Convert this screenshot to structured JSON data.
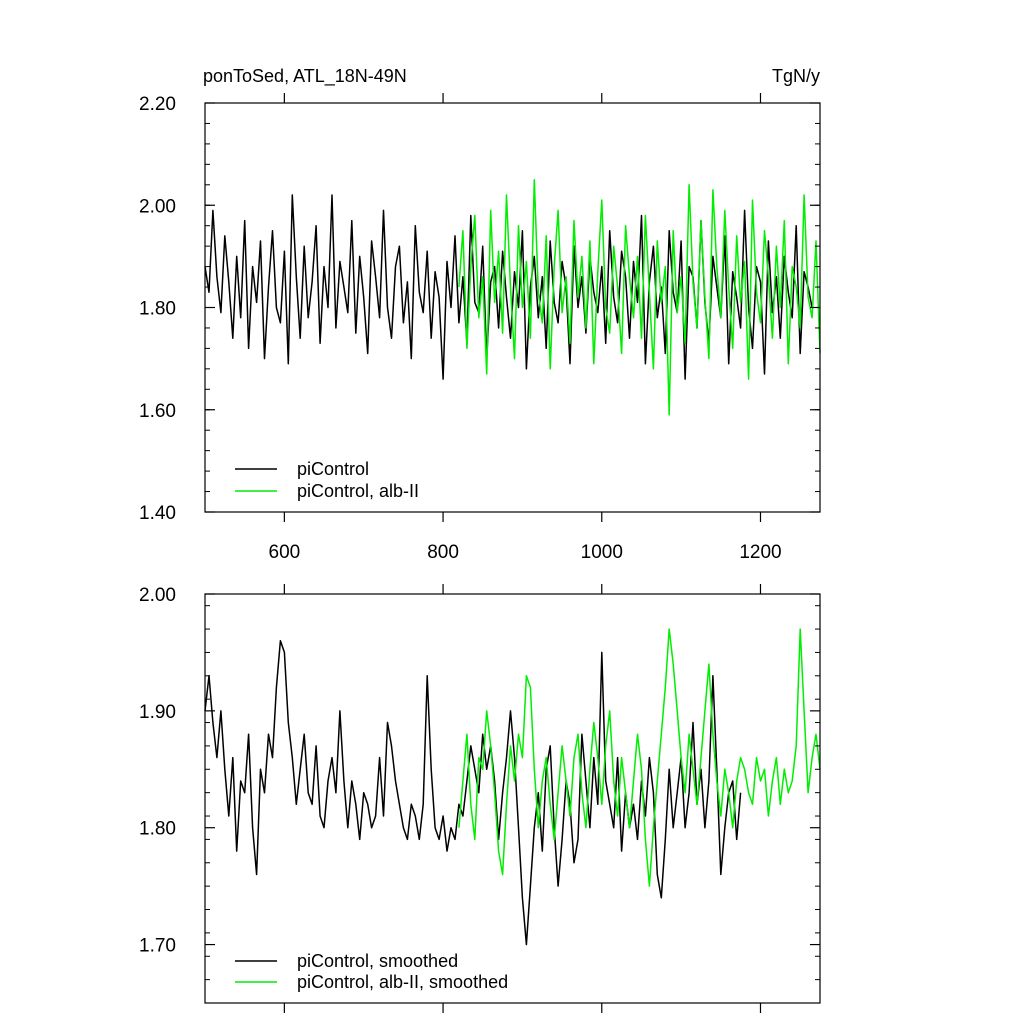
{
  "colors": {
    "piControl": "#000000",
    "albII": "#00ee00",
    "axis": "#000000",
    "background": "#ffffff"
  },
  "chart_data": [
    {
      "type": "line",
      "panel": "top",
      "title_left": "ponToSed, ATL_18N-49N",
      "title_right": "TgN/y",
      "xlim": [
        500,
        1275
      ],
      "ylim": [
        1.4,
        2.2
      ],
      "x_ticks": [
        600,
        800,
        1000,
        1200
      ],
      "x_tick_labels": [
        "600",
        "800",
        "1000",
        "1200"
      ],
      "y_ticks": [
        1.4,
        1.6,
        1.8,
        2.0,
        2.2
      ],
      "y_tick_labels": [
        "1.40",
        "1.60",
        "1.80",
        "2.00",
        "2.20"
      ],
      "grid": false,
      "legend_position": "bottom-left",
      "series": [
        {
          "name": "piControl",
          "color": "#000000",
          "x_start": 500,
          "x_step": 5,
          "values": [
            1.88,
            1.83,
            1.99,
            1.86,
            1.79,
            1.94,
            1.85,
            1.74,
            1.9,
            1.78,
            1.97,
            1.72,
            1.88,
            1.81,
            1.93,
            1.7,
            1.84,
            1.95,
            1.8,
            1.77,
            1.91,
            1.69,
            2.02,
            1.86,
            1.74,
            1.92,
            1.78,
            1.85,
            1.96,
            1.73,
            1.88,
            1.8,
            2.02,
            1.76,
            1.89,
            1.84,
            1.79,
            1.97,
            1.75,
            1.9,
            1.82,
            1.71,
            1.93,
            1.86,
            1.78,
            1.99,
            1.8,
            1.74,
            1.88,
            1.92,
            1.77,
            1.85,
            1.7,
            1.96,
            1.83,
            1.79,
            1.91,
            1.74,
            1.87,
            1.82,
            1.66,
            1.89,
            1.8,
            1.94,
            1.77,
            1.86,
            1.73,
            1.98,
            1.81,
            1.79,
            1.92,
            1.7,
            1.85,
            1.88,
            1.76,
            1.91,
            1.82,
            1.74,
            1.87,
            1.8,
            1.95,
            1.68,
            1.84,
            1.9,
            1.78,
            1.86,
            1.72,
            1.93,
            1.81,
            1.77,
            1.89,
            1.84,
            1.69,
            1.92,
            1.8,
            1.86,
            1.75,
            1.9,
            1.83,
            1.79,
            1.88,
            1.73,
            1.95,
            1.82,
            1.77,
            1.91,
            1.86,
            1.74,
            1.89,
            1.81,
            1.98,
            1.69,
            1.85,
            1.92,
            1.78,
            1.84,
            1.71,
            1.95,
            1.83,
            1.79,
            1.93,
            1.66,
            1.88,
            1.86,
            1.76,
            1.97,
            1.81,
            1.73,
            1.9,
            1.84,
            1.78,
            1.94,
            1.69,
            1.87,
            1.82,
            1.76,
            1.99,
            1.8,
            1.72,
            1.88,
            1.85,
            1.67,
            1.93,
            1.79,
            1.86,
            1.74,
            1.9,
            1.83,
            1.78,
            1.96,
            1.71,
            1.87,
            1.84,
            1.8
          ]
        },
        {
          "name": "piControl, alb-II",
          "color": "#00ee00",
          "x_start": 820,
          "x_step": 5,
          "values": [
            1.84,
            1.95,
            1.72,
            1.88,
            1.98,
            1.78,
            1.86,
            1.67,
            1.99,
            1.81,
            1.91,
            1.75,
            2.02,
            1.84,
            1.7,
            1.96,
            1.8,
            1.89,
            1.74,
            2.05,
            1.83,
            1.77,
            1.94,
            1.68,
            1.88,
            1.99,
            1.79,
            1.86,
            1.73,
            1.97,
            1.82,
            1.9,
            1.76,
            1.93,
            1.69,
            1.87,
            2.01,
            1.8,
            1.75,
            1.92,
            1.84,
            1.71,
            1.96,
            1.86,
            1.78,
            1.9,
            1.74,
            1.98,
            1.83,
            1.68,
            1.93,
            1.81,
            1.88,
            1.59,
            1.95,
            1.79,
            1.86,
            1.73,
            2.04,
            1.85,
            1.76,
            1.97,
            1.82,
            1.7,
            2.03,
            1.88,
            1.78,
            1.99,
            1.84,
            1.72,
            1.94,
            1.81,
            1.89,
            1.66,
            2.01,
            1.83,
            1.77,
            1.95,
            1.86,
            1.74,
            1.92,
            1.8,
            1.97,
            1.69,
            1.88,
            1.84,
            1.76,
            2.02,
            1.82,
            1.78,
            1.93,
            1.71
          ]
        }
      ]
    },
    {
      "type": "line",
      "panel": "bottom",
      "xlim": [
        500,
        1275
      ],
      "ylim": [
        1.65,
        2.0
      ],
      "x_ticks": [
        600,
        800,
        1000,
        1200
      ],
      "y_ticks": [
        1.7,
        1.8,
        1.9,
        2.0
      ],
      "y_tick_labels": [
        "1.70",
        "1.80",
        "1.90",
        "2.00"
      ],
      "grid": false,
      "legend_position": "bottom-left",
      "series": [
        {
          "name": "piControl, smoothed",
          "color": "#000000",
          "x_start": 500,
          "x_step": 5,
          "values": [
            1.9,
            1.93,
            1.89,
            1.86,
            1.9,
            1.85,
            1.81,
            1.86,
            1.78,
            1.84,
            1.83,
            1.88,
            1.8,
            1.76,
            1.85,
            1.83,
            1.88,
            1.86,
            1.92,
            1.96,
            1.95,
            1.89,
            1.86,
            1.82,
            1.85,
            1.88,
            1.83,
            1.82,
            1.87,
            1.81,
            1.8,
            1.84,
            1.86,
            1.83,
            1.9,
            1.84,
            1.8,
            1.84,
            1.82,
            1.79,
            1.83,
            1.82,
            1.8,
            1.81,
            1.86,
            1.81,
            1.89,
            1.87,
            1.84,
            1.82,
            1.8,
            1.79,
            1.82,
            1.81,
            1.79,
            1.82,
            1.93,
            1.85,
            1.8,
            1.79,
            1.81,
            1.78,
            1.8,
            1.79,
            1.82,
            1.81,
            1.84,
            1.87,
            1.85,
            1.83,
            1.88,
            1.85,
            1.87,
            1.84,
            1.79,
            1.83,
            1.86,
            1.9,
            1.86,
            1.8,
            1.74,
            1.7,
            1.75,
            1.8,
            1.83,
            1.78,
            1.85,
            1.87,
            1.8,
            1.75,
            1.79,
            1.84,
            1.82,
            1.77,
            1.79,
            1.88,
            1.84,
            1.8,
            1.86,
            1.82,
            1.95,
            1.84,
            1.82,
            1.8,
            1.86,
            1.78,
            1.83,
            1.8,
            1.82,
            1.79,
            1.84,
            1.81,
            1.86,
            1.83,
            1.76,
            1.74,
            1.79,
            1.85,
            1.8,
            1.83,
            1.86,
            1.8,
            1.83,
            1.89,
            1.82,
            1.85,
            1.8,
            1.84,
            1.93,
            1.85,
            1.76,
            1.8,
            1.83,
            1.84,
            1.79,
            1.83
          ]
        },
        {
          "name": "piControl, alb-II, smoothed",
          "color": "#00ee00",
          "x_start": 820,
          "x_step": 5,
          "values": [
            1.8,
            1.84,
            1.88,
            1.82,
            1.79,
            1.86,
            1.85,
            1.9,
            1.87,
            1.83,
            1.78,
            1.76,
            1.82,
            1.87,
            1.84,
            1.88,
            1.86,
            1.93,
            1.92,
            1.85,
            1.8,
            1.84,
            1.86,
            1.82,
            1.79,
            1.83,
            1.87,
            1.84,
            1.81,
            1.86,
            1.88,
            1.83,
            1.8,
            1.85,
            1.89,
            1.86,
            1.82,
            1.87,
            1.9,
            1.84,
            1.81,
            1.86,
            1.83,
            1.8,
            1.84,
            1.88,
            1.85,
            1.79,
            1.75,
            1.8,
            1.84,
            1.88,
            1.92,
            1.97,
            1.94,
            1.9,
            1.86,
            1.83,
            1.88,
            1.85,
            1.82,
            1.86,
            1.9,
            1.94,
            1.88,
            1.84,
            1.81,
            1.85,
            1.83,
            1.8,
            1.84,
            1.86,
            1.85,
            1.83,
            1.82,
            1.86,
            1.84,
            1.85,
            1.81,
            1.84,
            1.86,
            1.82,
            1.85,
            1.83,
            1.84,
            1.87,
            1.97,
            1.9,
            1.83,
            1.86,
            1.88,
            1.85
          ]
        }
      ]
    }
  ]
}
